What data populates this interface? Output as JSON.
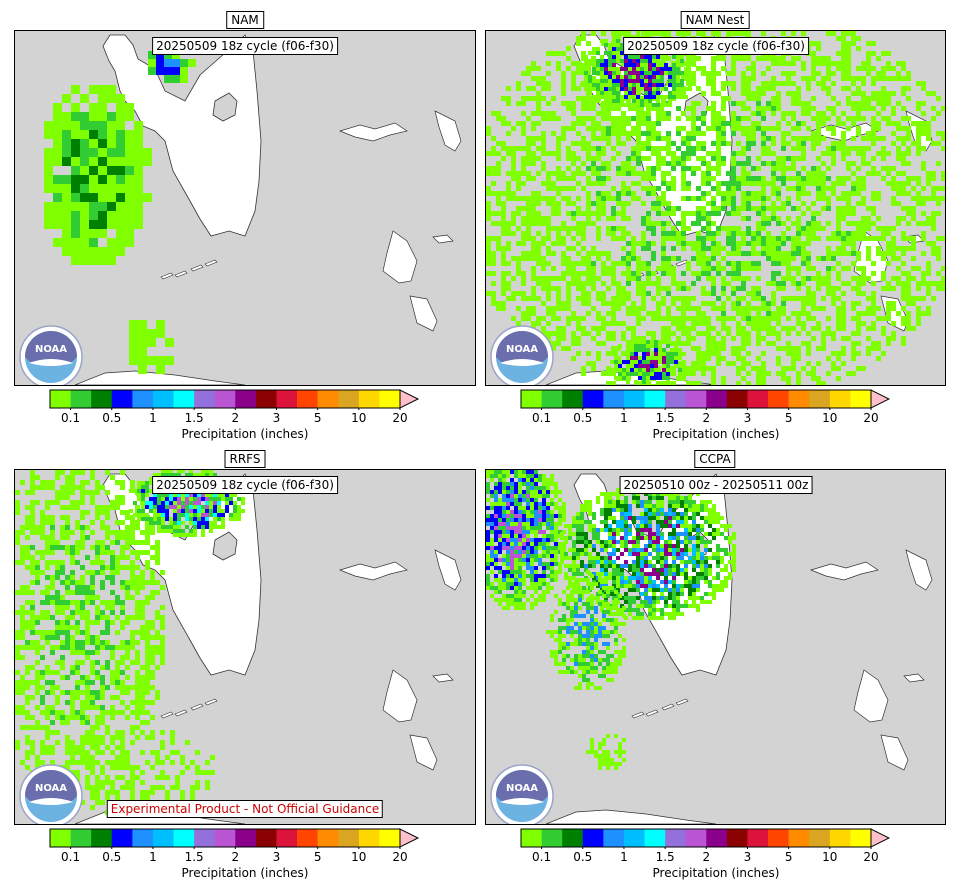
{
  "panels": [
    {
      "title": "NAM",
      "annotation": "20250509 18z cycle (f06-f30)",
      "warning": null
    },
    {
      "title": "NAM Nest",
      "annotation": "20250509 18z cycle (f06-f30)",
      "warning": null
    },
    {
      "title": "RRFS",
      "annotation": "20250509 18z cycle (f06-f30)",
      "warning": "Experimental Product - Not Official Guidance"
    },
    {
      "title": "CCPA",
      "annotation": "20250510 00z - 20250511 00z",
      "warning": null
    }
  ],
  "colorbar": {
    "label": "Precipitation (inches)",
    "tick_labels": [
      "0.1",
      "0.5",
      "1",
      "1.5",
      "2",
      "3",
      "5",
      "10",
      "20"
    ],
    "colors": [
      "#7fff00",
      "#32cd32",
      "#008000",
      "#0000ff",
      "#1e90ff",
      "#00bfff",
      "#00ffff",
      "#9370db",
      "#ba55d3",
      "#8b008b",
      "#8b0000",
      "#dc143c",
      "#ff4500",
      "#ff8c00",
      "#daa520",
      "#ffd700",
      "#ffff00"
    ],
    "extend_color": "#ffc0cb"
  },
  "map_colors": {
    "ocean": "#d3d3d3",
    "land": "#ffffff",
    "coast": "#333333"
  },
  "logo": {
    "text": "NOAA"
  }
}
